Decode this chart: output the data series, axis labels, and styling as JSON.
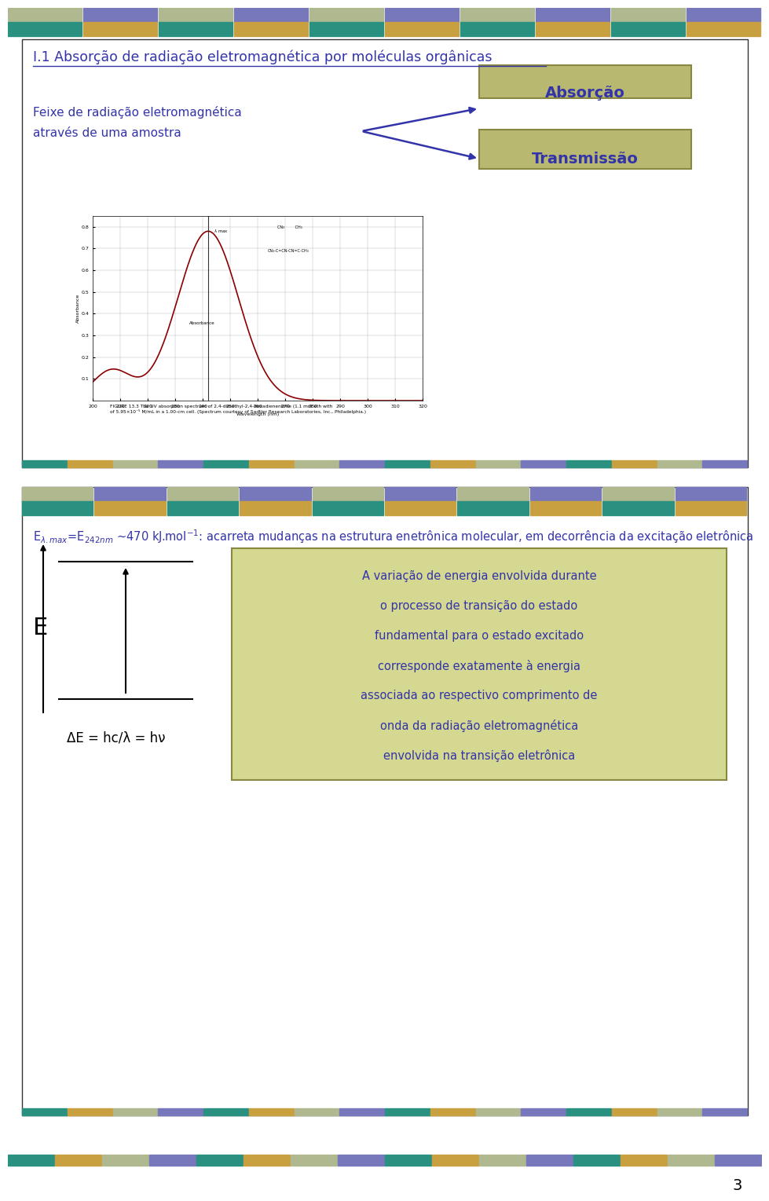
{
  "bg_color": "#ffffff",
  "title_text": "I.1 Absorção de radiação eletromagnética por moléculas orgânicas",
  "title_color": "#3333aa",
  "beam_text_line1": "Feixe de radiação eletromagnética",
  "beam_text_line2": "através de uma amostra",
  "beam_text_color": "#3333aa",
  "absorb_label": "Absorção",
  "transmit_label": "Transmissão",
  "box_bg_color": "#b8b870",
  "box_text_color": "#3333aa",
  "eq_text": "ΔE = hc/λ = hν",
  "info_box_bg": "#d4d890",
  "info_box_line1": "A variação de energia envolvida durante",
  "info_box_line2": "o processo de transição do estado",
  "info_box_line3": "fundamental para o estado excitado",
  "info_box_line4": "corresponde exatamente à energia",
  "info_box_line5": "associada ao respectivo comprimento de",
  "info_box_line6": "onda da radiação eletromagnética",
  "info_box_line7": "envolvida na transição eletrônica",
  "info_box_color": "#3333aa",
  "page_number": "3",
  "band_color_olive": "#b0b890",
  "band_color_purple": "#7777bb",
  "band_color_teal": "#2a9080",
  "band_color_gold": "#c8a040",
  "caption_text_line1": "FIGURE 13.3 The UV absorption spectrum of 2,4-dimethyl-2,4-hexadienenitrile (1.1 mm eth with",
  "caption_text_line2": "of 5.95×10⁻⁵ M/mL in a 1.00-cm cell. (Spectrum courtesy of Sadtler Research Laboratories, Inc., Philadelphia.)"
}
